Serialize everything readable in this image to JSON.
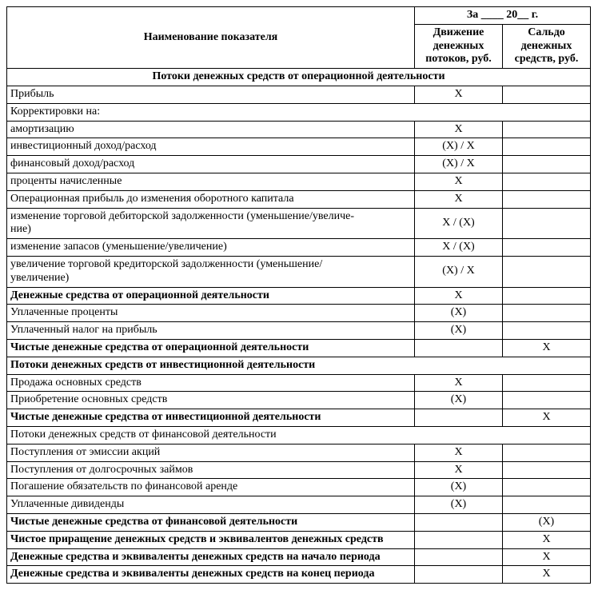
{
  "period_header": "За ____ 20__ г.",
  "col_name": "Наименование показателя",
  "col_flow": "Движение денежных потоков, руб.",
  "col_balance": "Сальдо денежных средств, руб.",
  "section1": "Потоки денежных средств от операционной деятельности",
  "rows": [
    {
      "l": "Прибыль",
      "v1": "X",
      "v2": ""
    },
    {
      "l": "Корректировки на:",
      "span": true
    },
    {
      "l": "амортизацию",
      "v1": "X",
      "v2": ""
    },
    {
      "l": "инвестиционный доход/расход",
      "v1": "(X) / X",
      "v2": ""
    },
    {
      "l": "финансовый доход/расход",
      "v1": "(X) / X",
      "v2": ""
    },
    {
      "l": "проценты начисленные",
      "v1": "X",
      "v2": ""
    },
    {
      "l": "Операционная прибыль до изменения оборотного капитала",
      "v1": "X",
      "v2": ""
    },
    {
      "l": "изменение торговой дебиторской задолженности (уменьшение/увеличе-\nние)",
      "v1": "X / (X)",
      "v2": ""
    },
    {
      "l": "изменение запасов (уменьшение/увеличение)",
      "v1": "X / (X)",
      "v2": ""
    },
    {
      "l": "увеличение торговой кредиторской задолженности (уменьшение/\nувеличение)",
      "v1": "(X) / X",
      "v2": ""
    },
    {
      "l": "Денежные средства от операционной деятельности",
      "bold": true,
      "v1": "X",
      "v2": ""
    },
    {
      "l": "Уплаченные проценты",
      "v1": "(X)",
      "v2": ""
    },
    {
      "l": "Уплаченный налог на прибыль",
      "v1": "(X)",
      "v2": ""
    },
    {
      "l": "Чистые денежные средства от операционной деятельности",
      "bold": true,
      "v1": "",
      "v2": "X"
    },
    {
      "l": "Потоки денежных средств от инвестиционной деятельности",
      "bold": true,
      "span": true
    },
    {
      "l": "Продажа основных средств",
      "v1": "X",
      "v2": ""
    },
    {
      "l": "Приобретение основных средств",
      "v1": "(X)",
      "v2": ""
    },
    {
      "l": "Чистые денежные средства от инвестиционной деятельности",
      "bold": true,
      "v1": "",
      "v2": "X"
    },
    {
      "l": "Потоки денежных средств от финансовой деятельности",
      "span": true
    },
    {
      "l": "Поступления от эмиссии акций",
      "v1": "X",
      "v2": ""
    },
    {
      "l": "Поступления от долгосрочных займов",
      "v1": "X",
      "v2": ""
    },
    {
      "l": "Погашение обязательств по финансовой аренде",
      "v1": "(X)",
      "v2": ""
    },
    {
      "l": "Уплаченные дивиденды",
      "v1": "(X)",
      "v2": ""
    },
    {
      "l": "Чистые денежные средства от финансовой деятельности",
      "bold": true,
      "v1": "",
      "v2": "(X)"
    },
    {
      "l": "Чистое приращение денежных средств и эквивалентов денежных средств",
      "bold": true,
      "v1": "",
      "v2": "X"
    },
    {
      "l": "Денежные средства и эквиваленты денежных средств на начало периода",
      "bold": true,
      "v1": "",
      "v2": "X"
    },
    {
      "l": "Денежные средства и эквиваленты денежных средств на конец периода",
      "bold": true,
      "v1": "",
      "v2": "X"
    }
  ]
}
